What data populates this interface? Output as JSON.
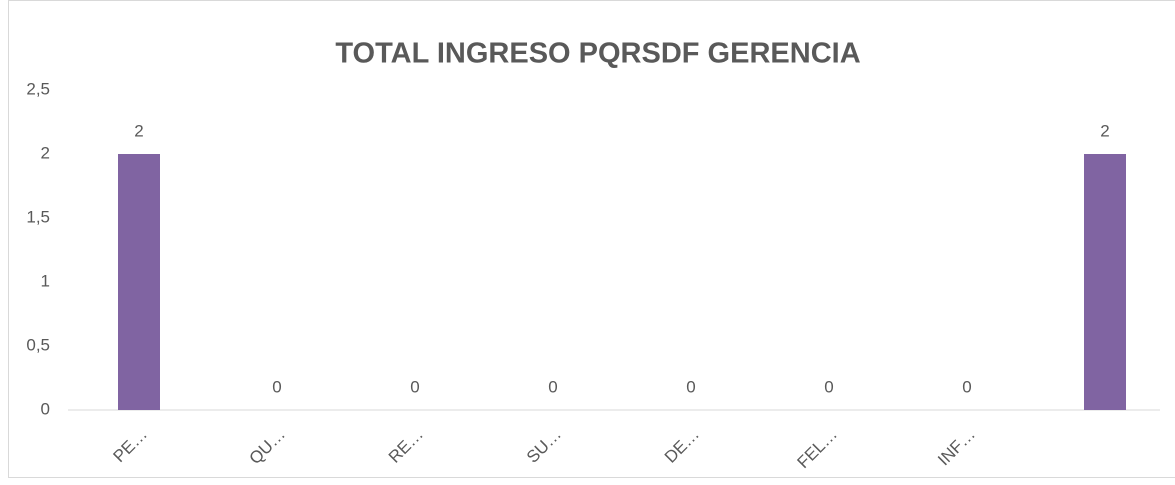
{
  "chart_data": {
    "type": "bar",
    "title": "TOTAL INGRESO PQRSDF GERENCIA",
    "categories": [
      "PE…",
      "QU…",
      "RE…",
      "SU…",
      "DE…",
      "FEL…",
      "INF…",
      null
    ],
    "values": [
      2,
      0,
      0,
      0,
      0,
      0,
      0,
      2
    ],
    "color": "#8064a2",
    "ylim": [
      0,
      2.5
    ],
    "yticks": [
      0,
      {
        "value": 0.5,
        "label": "0,5"
      },
      1,
      {
        "value": 1.5,
        "label": "1,5"
      },
      2,
      {
        "value": 2.5,
        "label": "2,5"
      }
    ],
    "grid": false
  }
}
